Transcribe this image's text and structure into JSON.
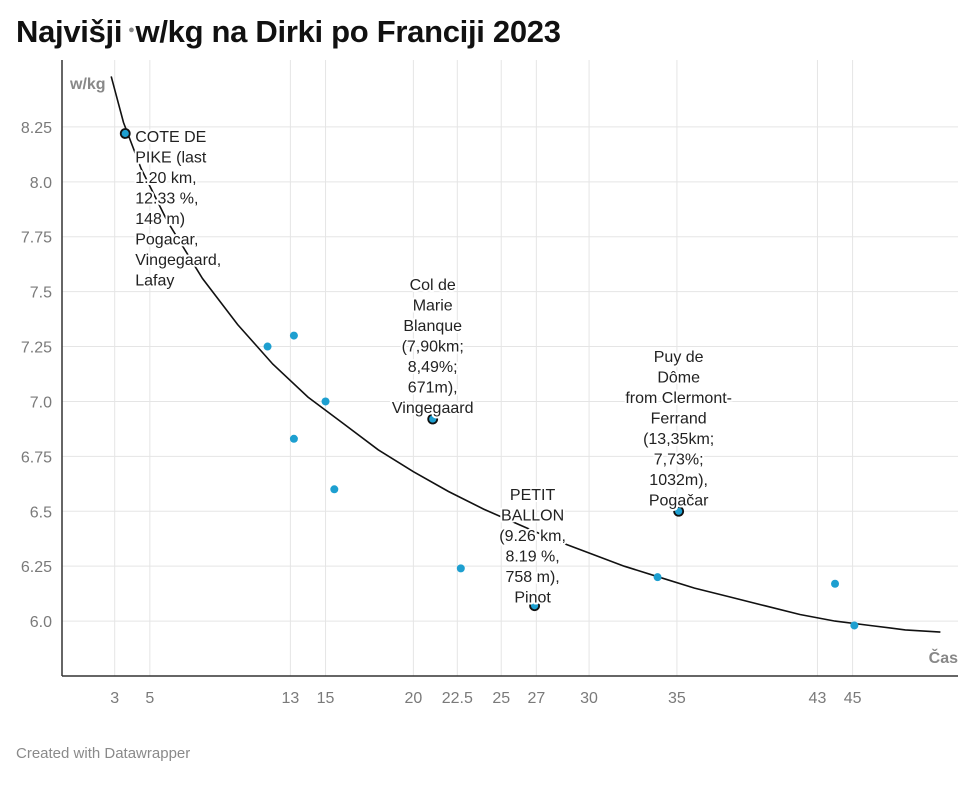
{
  "title": "Najvišji",
  "title_rest": "w/kg na Dirki po Franciji 2023",
  "footer": "Created with Datawrapper",
  "chart_data": {
    "type": "scatter",
    "title": "Najvišji w/kg na Dirki po Franciji 2023",
    "xlabel": "Čas",
    "ylabel": "w/kg",
    "xlim": [
      0,
      51
    ],
    "ylim": [
      5.75,
      8.5
    ],
    "x_ticks": [
      3,
      5,
      13,
      15,
      20,
      22.5,
      25,
      27,
      30,
      35,
      43,
      45
    ],
    "y_ticks": [
      6.0,
      6.25,
      6.5,
      6.75,
      7.0,
      7.25,
      7.5,
      7.75,
      8.0,
      8.25
    ],
    "grid": true,
    "colors": {
      "point": "#1d9fd0",
      "highlight": "#1d9fd0",
      "highlight_stroke": "#111111",
      "curve": "#111111",
      "grid": "#e5e5e5"
    },
    "points": [
      {
        "x": 11.7,
        "y": 7.25
      },
      {
        "x": 13.2,
        "y": 7.3
      },
      {
        "x": 13.2,
        "y": 6.83
      },
      {
        "x": 15.0,
        "y": 7.0
      },
      {
        "x": 15.5,
        "y": 6.6
      },
      {
        "x": 22.7,
        "y": 6.24
      },
      {
        "x": 33.9,
        "y": 6.2
      },
      {
        "x": 44.0,
        "y": 6.17
      },
      {
        "x": 45.1,
        "y": 5.98
      }
    ],
    "highlighted": [
      {
        "x": 3.6,
        "y": 8.22,
        "label": [
          "COTE DE",
          "PIKE (last",
          "1.20 km,",
          "12.33 %,",
          "148 m)",
          "Pogacar,",
          "Vingegaard,",
          "Lafay"
        ]
      },
      {
        "x": 21.1,
        "y": 6.92,
        "label": [
          "Col de",
          "Marie",
          "Blanque",
          "(7,90km;",
          "8,49%;",
          "671m),",
          "Vingegaard"
        ]
      },
      {
        "x": 35.1,
        "y": 6.5,
        "label": [
          "Puy de",
          "Dôme",
          "from Clermont-",
          "Ferrand",
          "(13,35km;",
          "7,73%;",
          "1032m),",
          "Pogačar"
        ]
      },
      {
        "x": 26.9,
        "y": 6.07,
        "label": [
          "PETIT",
          "BALLON",
          "(9.26 km,",
          "8.19 %,",
          "758 m),",
          "Pinot"
        ]
      }
    ],
    "trend_curve": [
      [
        2.8,
        8.48
      ],
      [
        3.5,
        8.27
      ],
      [
        4.5,
        8.06
      ],
      [
        6,
        7.82
      ],
      [
        8,
        7.56
      ],
      [
        10,
        7.35
      ],
      [
        12,
        7.17
      ],
      [
        14,
        7.02
      ],
      [
        16,
        6.9
      ],
      [
        18,
        6.78
      ],
      [
        20,
        6.68
      ],
      [
        22,
        6.59
      ],
      [
        24,
        6.51
      ],
      [
        26,
        6.44
      ],
      [
        28,
        6.37
      ],
      [
        30,
        6.31
      ],
      [
        32,
        6.25
      ],
      [
        34,
        6.2
      ],
      [
        36,
        6.15
      ],
      [
        38,
        6.11
      ],
      [
        40,
        6.07
      ],
      [
        42,
        6.03
      ],
      [
        44,
        6.0
      ],
      [
        46,
        5.98
      ],
      [
        48,
        5.96
      ],
      [
        50,
        5.95
      ]
    ]
  }
}
